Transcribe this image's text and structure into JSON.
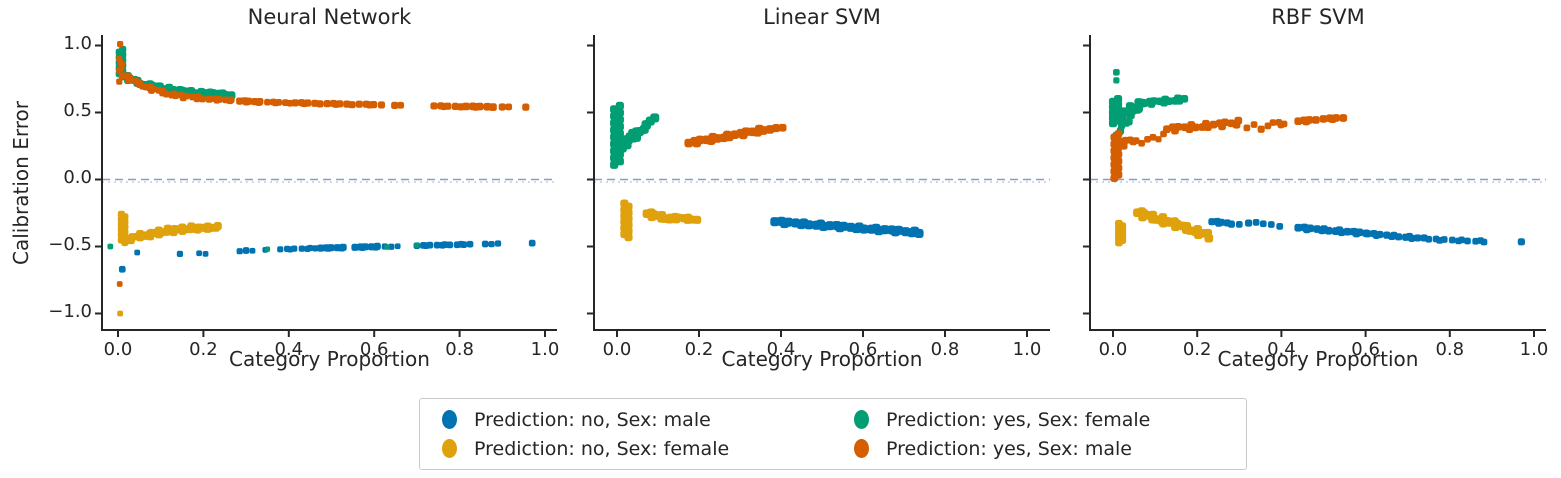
{
  "figure": {
    "ylabel": "Calibration Error",
    "xlabel": "Category Proportion",
    "background": "#ffffff"
  },
  "chart_data": {
    "type": "scatter",
    "title": "",
    "xlabel": "Category Proportion",
    "ylabel": "Calibration Error",
    "axes": {
      "xticks": [
        0.0,
        0.2,
        0.4,
        0.6,
        0.8,
        1.0
      ],
      "yticks": [
        1.0,
        0.5,
        0.0,
        -0.5,
        -1.0
      ],
      "xlim": [
        -0.04,
        1.03
      ],
      "ylim": [
        -1.12,
        1.08
      ],
      "grid": false
    },
    "zero_line": {
      "y": 0,
      "style": "dashed",
      "color": "#8e9dbb"
    },
    "legend_position": "bottom-center",
    "draw_order": [
      "no_male",
      "no_female",
      "yes_female",
      "yes_male"
    ],
    "legend": [
      {
        "key": "no_male",
        "label": "Prediction: no, Sex: male",
        "color": "#0173b2"
      },
      {
        "key": "no_female",
        "label": "Prediction: no, Sex: female",
        "color": "#dfa10c"
      },
      {
        "key": "yes_female",
        "label": "Prediction: yes, Sex: female",
        "color": "#029e73"
      },
      {
        "key": "yes_male",
        "label": "Prediction: yes, Sex: male",
        "color": "#d55e00"
      }
    ],
    "point_encoding": "items are [\"p\",x,y,size] single points, [\"ln\",x0,y0,x1,y1,n,ywobble,size] dense strips of n points, [\"vl\",x,y0,y1,n,xjitter,size] vertical streaks; x = category proportion, y = calibration error",
    "panels": [
      {
        "title": "Neural Network",
        "series": {
          "no_male": [
            [
              "p",
              0.01,
              -0.67,
              1.4
            ],
            [
              "p",
              0.045,
              -0.545,
              1.2
            ],
            [
              "p",
              0.145,
              -0.555,
              1.3
            ],
            [
              "p",
              0.19,
              -0.55,
              1.2
            ],
            [
              "p",
              0.205,
              -0.555,
              1.2
            ],
            [
              "p",
              0.285,
              -0.535,
              1.3
            ],
            [
              "p",
              0.3,
              -0.53,
              1.4
            ],
            [
              "p",
              0.315,
              -0.532,
              1.2
            ],
            [
              "p",
              0.345,
              -0.525,
              1.2
            ],
            [
              "ln",
              0.38,
              -0.521,
              0.465,
              -0.513,
              8,
              0.003,
              1.3
            ],
            [
              "ln",
              0.475,
              -0.512,
              0.53,
              -0.508,
              7,
              0.002,
              1.5
            ],
            [
              "ln",
              0.555,
              -0.506,
              0.61,
              -0.501,
              7,
              0.002,
              1.5
            ],
            [
              "p",
              0.625,
              -0.5,
              1.3
            ],
            [
              "p",
              0.64,
              -0.502,
              1.3
            ],
            [
              "p",
              0.655,
              -0.498,
              1.2
            ],
            [
              "ln",
              0.7,
              -0.494,
              0.825,
              -0.483,
              12,
              0.002,
              1.4
            ],
            [
              "p",
              0.86,
              -0.481,
              1.4
            ],
            [
              "p",
              0.875,
              -0.482,
              1.3
            ],
            [
              "p",
              0.89,
              -0.478,
              1.3
            ],
            [
              "p",
              0.97,
              -0.475,
              1.4
            ]
          ],
          "no_female": [
            [
              "p",
              0.005,
              -1.0,
              1.2
            ],
            [
              "vl",
              0.012,
              -0.26,
              -0.47,
              12,
              0.004,
              1.5
            ],
            [
              "ln",
              0.02,
              -0.455,
              0.06,
              -0.41,
              8,
              0.012,
              1.6
            ],
            [
              "ln",
              0.065,
              -0.42,
              0.115,
              -0.38,
              10,
              0.013,
              1.7
            ],
            [
              "ln",
              0.12,
              -0.385,
              0.17,
              -0.362,
              10,
              0.012,
              1.7
            ],
            [
              "ln",
              0.175,
              -0.368,
              0.232,
              -0.355,
              10,
              0.008,
              1.7
            ]
          ],
          "yes_female": [
            [
              "vl",
              0.007,
              0.79,
              0.97,
              10,
              0.004,
              1.5
            ],
            [
              "ln",
              0.013,
              0.77,
              0.06,
              0.71,
              9,
              0.012,
              1.7
            ],
            [
              "ln",
              0.065,
              0.705,
              0.13,
              0.665,
              12,
              0.012,
              1.7
            ],
            [
              "ln",
              0.135,
              0.662,
              0.2,
              0.642,
              11,
              0.01,
              1.7
            ],
            [
              "ln",
              0.205,
              0.644,
              0.262,
              0.632,
              9,
              0.008,
              1.7
            ],
            [
              "p",
              -0.018,
              -0.5,
              1.2
            ],
            [
              "p",
              0.35,
              -0.52,
              1.1
            ],
            [
              "p",
              0.63,
              -0.505,
              1.1
            ],
            [
              "p",
              0.7,
              -0.49,
              1.1
            ]
          ],
          "yes_male": [
            [
              "p",
              0.005,
              1.01,
              1.3
            ],
            [
              "p",
              0.006,
              0.87,
              1.2
            ],
            [
              "p",
              0.008,
              0.83,
              1.2
            ],
            [
              "vl",
              0.006,
              0.73,
              0.9,
              5,
              0.003,
              1.3
            ],
            [
              "ln",
              0.012,
              0.775,
              0.06,
              0.7,
              8,
              0.012,
              1.4
            ],
            [
              "ln",
              0.065,
              0.69,
              0.13,
              0.628,
              10,
              0.012,
              1.4
            ],
            [
              "ln",
              0.135,
              0.625,
              0.21,
              0.602,
              9,
              0.01,
              1.4
            ],
            [
              "ln",
              0.215,
              0.6,
              0.268,
              0.59,
              7,
              0.005,
              1.4
            ],
            [
              "ln",
              0.285,
              0.585,
              0.335,
              0.578,
              7,
              0.004,
              1.5
            ],
            [
              "ln",
              0.35,
              0.577,
              0.4,
              0.572,
              6,
              0.003,
              1.4
            ],
            [
              "ln",
              0.415,
              0.572,
              0.47,
              0.567,
              6,
              0.003,
              1.5
            ],
            [
              "ln",
              0.49,
              0.566,
              0.545,
              0.561,
              6,
              0.003,
              1.5
            ],
            [
              "ln",
              0.565,
              0.562,
              0.615,
              0.556,
              5,
              0.002,
              1.5
            ],
            [
              "p",
              0.648,
              0.553,
              1.5
            ],
            [
              "p",
              0.662,
              0.554,
              1.4
            ],
            [
              "ln",
              0.74,
              0.549,
              0.8,
              0.544,
              6,
              0.002,
              1.5
            ],
            [
              "ln",
              0.815,
              0.545,
              0.875,
              0.542,
              6,
              0.002,
              1.6
            ],
            [
              "p",
              0.9,
              0.541,
              1.5
            ],
            [
              "p",
              0.915,
              0.542,
              1.4
            ],
            [
              "p",
              0.955,
              0.54,
              1.5
            ],
            [
              "p",
              0.004,
              -0.78,
              1.2
            ]
          ]
        }
      },
      {
        "title": "Linear SVM",
        "series": {
          "no_male": [
            [
              "ln",
              0.385,
              -0.315,
              0.74,
              -0.397,
              30,
              0.008,
              1.9
            ]
          ],
          "no_female": [
            [
              "vl",
              0.023,
              -0.18,
              -0.43,
              12,
              0.005,
              1.7
            ],
            [
              "ln",
              0.073,
              -0.255,
              0.125,
              -0.29,
              9,
              0.015,
              1.8
            ],
            [
              "ln",
              0.13,
              -0.285,
              0.192,
              -0.297,
              9,
              0.009,
              1.7
            ]
          ],
          "yes_female": [
            [
              "vl",
              0.0,
              0.11,
              0.55,
              18,
              0.007,
              1.7
            ],
            [
              "ln",
              0.013,
              0.235,
              0.088,
              0.452,
              13,
              0.012,
              1.9
            ],
            [
              "ln",
              0.02,
              0.3,
              0.055,
              0.37,
              6,
              0.01,
              1.7
            ]
          ],
          "yes_male": [
            [
              "ln",
              0.175,
              0.272,
              0.37,
              0.377,
              20,
              0.011,
              1.8
            ],
            [
              "p",
              0.388,
              0.384,
              1.7
            ],
            [
              "p",
              0.404,
              0.386,
              1.6
            ]
          ]
        }
      },
      {
        "title": "RBF SVM",
        "series": {
          "no_male": [
            [
              "ln",
              0.235,
              -0.315,
              0.278,
              -0.328,
              6,
              0.006,
              1.5
            ],
            [
              "p",
              0.3,
              -0.335,
              1.4
            ],
            [
              "p",
              0.322,
              -0.325,
              1.5
            ],
            [
              "p",
              0.34,
              -0.32,
              1.4
            ],
            [
              "p",
              0.357,
              -0.33,
              1.4
            ],
            [
              "p",
              0.376,
              -0.336,
              1.4
            ],
            [
              "p",
              0.396,
              -0.35,
              1.4
            ],
            [
              "ln",
              0.44,
              -0.36,
              0.6,
              -0.402,
              16,
              0.007,
              1.6
            ],
            [
              "ln",
              0.605,
              -0.405,
              0.735,
              -0.44,
              13,
              0.006,
              1.5
            ],
            [
              "ln",
              0.75,
              -0.446,
              0.885,
              -0.462,
              11,
              0.005,
              1.4
            ],
            [
              "p",
              0.97,
              -0.465,
              1.5
            ]
          ],
          "no_female": [
            [
              "vl",
              0.018,
              -0.33,
              -0.47,
              9,
              0.004,
              1.6
            ],
            [
              "ln",
              0.058,
              -0.248,
              0.13,
              -0.315,
              12,
              0.02,
              1.8
            ],
            [
              "ln",
              0.135,
              -0.32,
              0.228,
              -0.42,
              14,
              0.018,
              1.8
            ]
          ],
          "yes_female": [
            [
              "p",
              0.008,
              0.8,
              1.4
            ],
            [
              "p",
              0.008,
              0.74,
              1.3
            ],
            [
              "vl",
              0.006,
              0.42,
              0.6,
              10,
              0.006,
              1.7
            ],
            [
              "ln",
              0.012,
              0.46,
              0.07,
              0.565,
              12,
              0.03,
              1.8
            ],
            [
              "ln",
              0.075,
              0.57,
              0.17,
              0.6,
              12,
              0.012,
              1.6
            ],
            [
              "ln",
              0.008,
              0.33,
              0.035,
              0.44,
              6,
              0.01,
              1.5
            ]
          ],
          "yes_male": [
            [
              "vl",
              0.008,
              0.01,
              0.34,
              14,
              0.005,
              1.6
            ],
            [
              "ln",
              0.015,
              0.25,
              0.045,
              0.3,
              6,
              0.02,
              1.5
            ],
            [
              "p",
              0.055,
              0.29,
              1.4
            ],
            [
              "p",
              0.068,
              0.27,
              1.4
            ],
            [
              "p",
              0.082,
              0.3,
              1.4
            ],
            [
              "p",
              0.095,
              0.315,
              1.4
            ],
            [
              "p",
              0.108,
              0.3,
              1.3
            ],
            [
              "p",
              0.12,
              0.34,
              1.4
            ],
            [
              "ln",
              0.128,
              0.375,
              0.3,
              0.424,
              18,
              0.016,
              1.6
            ],
            [
              "p",
              0.318,
              0.385,
              1.4
            ],
            [
              "p",
              0.335,
              0.41,
              1.4
            ],
            [
              "p",
              0.352,
              0.375,
              1.5
            ],
            [
              "p",
              0.368,
              0.4,
              1.4
            ],
            [
              "ln",
              0.38,
              0.425,
              0.41,
              0.41,
              4,
              0.008,
              1.4
            ],
            [
              "ln",
              0.44,
              0.435,
              0.48,
              0.443,
              5,
              0.006,
              1.6
            ],
            [
              "ln",
              0.5,
              0.452,
              0.545,
              0.458,
              5,
              0.005,
              1.6
            ]
          ]
        }
      }
    ]
  }
}
